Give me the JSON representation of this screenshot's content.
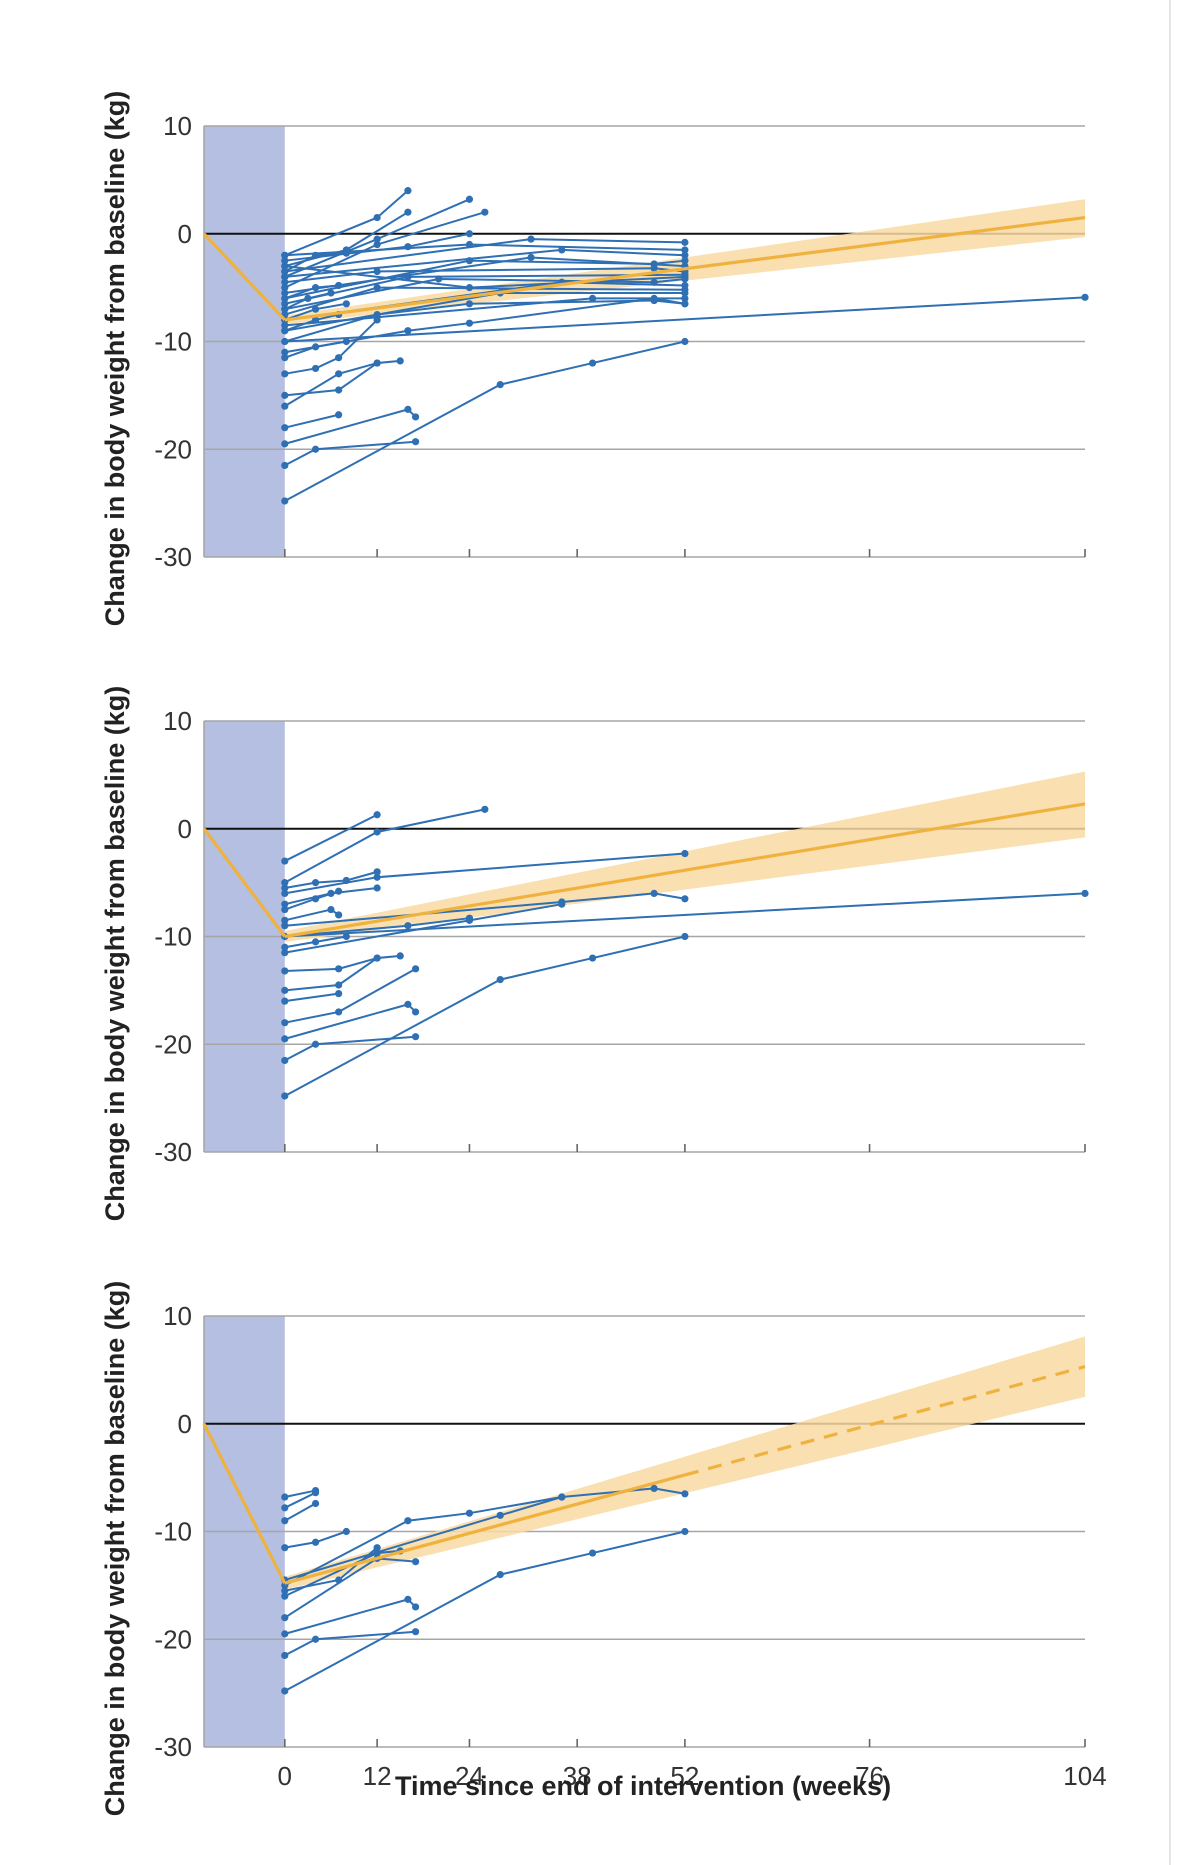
{
  "colors": {
    "shade": "#b4bfe1",
    "grid": "#a6a6a6",
    "zero_line": "#111111",
    "series": "#2f6fb3",
    "trend": "#f0b23e",
    "band": "#f9d9a3"
  },
  "chart_data": [
    {
      "type": "line",
      "title": "",
      "xlabel": "",
      "ylabel": "Change in body weight from baseline (kg)",
      "ylim": [
        -30,
        10
      ],
      "xlim": [
        -10.5,
        104
      ],
      "x_ticks": [
        0,
        12,
        24,
        38,
        52,
        76,
        104
      ],
      "show_x_tick_labels": false,
      "y_ticks": [
        10,
        0,
        -10,
        -20,
        -30
      ],
      "y_tick_labels": [
        "10",
        "0",
        "-10",
        "-20",
        "-30"
      ],
      "intervention_period": [
        -10.5,
        0
      ],
      "trend": {
        "x": [
          -10.5,
          0,
          104
        ],
        "y": [
          0,
          -8,
          1.5
        ],
        "style": "solid",
        "band_at_end": [
          -0.3,
          3.2
        ],
        "band_at_start": [
          -8.4,
          -7.6
        ]
      },
      "series": [
        {
          "x": [
            0,
            12,
            16
          ],
          "y": [
            -2,
            1.5,
            4
          ]
        },
        {
          "x": [
            0,
            8,
            16
          ],
          "y": [
            -3,
            -1.5,
            2
          ]
        },
        {
          "x": [
            0,
            12,
            24
          ],
          "y": [
            -4,
            -0.5,
            3.2
          ]
        },
        {
          "x": [
            0,
            12,
            26
          ],
          "y": [
            -5,
            -1,
            2
          ]
        },
        {
          "x": [
            0,
            16,
            24
          ],
          "y": [
            -2.5,
            -1.2,
            0
          ]
        },
        {
          "x": [
            0,
            32,
            52
          ],
          "y": [
            -3.5,
            -0.5,
            -0.8
          ]
        },
        {
          "x": [
            0,
            24,
            52
          ],
          "y": [
            -2,
            -1,
            -1.5
          ]
        },
        {
          "x": [
            0,
            36,
            52
          ],
          "y": [
            -4,
            -1.5,
            -2
          ]
        },
        {
          "x": [
            0,
            24,
            48,
            52
          ],
          "y": [
            -6,
            -2.5,
            -2.8,
            -2.5
          ]
        },
        {
          "x": [
            0,
            32,
            52
          ],
          "y": [
            -5.5,
            -2.2,
            -3
          ]
        },
        {
          "x": [
            0,
            12,
            48,
            52
          ],
          "y": [
            -4.5,
            -3.5,
            -3.2,
            -3.5
          ]
        },
        {
          "x": [
            0,
            16,
            52
          ],
          "y": [
            -6.5,
            -4,
            -3.8
          ]
        },
        {
          "x": [
            0,
            24,
            52
          ],
          "y": [
            -3,
            -5,
            -4
          ]
        },
        {
          "x": [
            0,
            20,
            48,
            52
          ],
          "y": [
            -7,
            -4.2,
            -4.5,
            -4.2
          ]
        },
        {
          "x": [
            0,
            36,
            52
          ],
          "y": [
            -8,
            -4.5,
            -4.8
          ]
        },
        {
          "x": [
            0,
            12,
            52
          ],
          "y": [
            -7.5,
            -5,
            -5.2
          ]
        },
        {
          "x": [
            0,
            28,
            52
          ],
          "y": [
            -9,
            -5.5,
            -5.5
          ]
        },
        {
          "x": [
            0,
            40,
            52
          ],
          "y": [
            -8.5,
            -6,
            -6
          ]
        },
        {
          "x": [
            0,
            12,
            24,
            48,
            52
          ],
          "y": [
            -10,
            -7.5,
            -6.5,
            -6.2,
            -6.5
          ]
        },
        {
          "x": [
            0,
            104
          ],
          "y": [
            -10,
            -5.9
          ]
        },
        {
          "x": [
            0,
            16,
            24,
            48,
            52
          ],
          "y": [
            -11,
            -9,
            -8.3,
            -6,
            -6.5
          ]
        },
        {
          "x": [
            0,
            4,
            8
          ],
          "y": [
            -3.5,
            -2,
            -1.8
          ]
        },
        {
          "x": [
            0,
            4,
            7
          ],
          "y": [
            -6,
            -5,
            -4.8
          ]
        },
        {
          "x": [
            0,
            3,
            6
          ],
          "y": [
            -7,
            -6,
            -5.5
          ]
        },
        {
          "x": [
            0,
            4,
            8
          ],
          "y": [
            -8,
            -7,
            -6.5
          ]
        },
        {
          "x": [
            0,
            4,
            7
          ],
          "y": [
            -9,
            -8,
            -7.5
          ]
        },
        {
          "x": [
            0,
            4,
            8
          ],
          "y": [
            -11.5,
            -10.5,
            -10
          ]
        },
        {
          "x": [
            0,
            4,
            7,
            12
          ],
          "y": [
            -13,
            -12.5,
            -11.5,
            -8
          ]
        },
        {
          "x": [
            0,
            7,
            12,
            15
          ],
          "y": [
            -15,
            -14.5,
            -12,
            -11.8
          ]
        },
        {
          "x": [
            0,
            7,
            12
          ],
          "y": [
            -16,
            -13,
            -12
          ]
        },
        {
          "x": [
            0,
            7
          ],
          "y": [
            -18,
            -16.8
          ]
        },
        {
          "x": [
            0,
            16,
            17
          ],
          "y": [
            -19.5,
            -16.3,
            -17
          ]
        },
        {
          "x": [
            0,
            4,
            17
          ],
          "y": [
            -21.5,
            -20,
            -19.3
          ]
        },
        {
          "x": [
            0,
            28,
            40,
            52
          ],
          "y": [
            -24.8,
            -14,
            -12,
            -10
          ]
        }
      ]
    },
    {
      "type": "line",
      "title": "",
      "xlabel": "",
      "ylabel": "Change in body weight from baseline (kg)",
      "ylim": [
        -30,
        10
      ],
      "xlim": [
        -10.5,
        104
      ],
      "x_ticks": [
        0,
        12,
        24,
        38,
        52,
        76,
        104
      ],
      "show_x_tick_labels": false,
      "y_ticks": [
        10,
        0,
        -10,
        -20,
        -30
      ],
      "y_tick_labels": [
        "10",
        "0",
        "-10",
        "-20",
        "-30"
      ],
      "intervention_period": [
        -10.5,
        0
      ],
      "trend": {
        "x": [
          -10.5,
          0,
          104
        ],
        "y": [
          0,
          -10,
          2.3
        ],
        "style": "solid",
        "band_at_end": [
          -0.8,
          5.3
        ],
        "band_at_start": [
          -10.5,
          -9.5
        ]
      },
      "series": [
        {
          "x": [
            0,
            12
          ],
          "y": [
            -3,
            1.3
          ]
        },
        {
          "x": [
            0,
            12,
            26
          ],
          "y": [
            -5,
            -0.3,
            1.8
          ]
        },
        {
          "x": [
            0,
            12,
            52
          ],
          "y": [
            -6,
            -4.5,
            -2.3
          ]
        },
        {
          "x": [
            0,
            4,
            8,
            12
          ],
          "y": [
            -5.5,
            -5,
            -4.8,
            -4
          ]
        },
        {
          "x": [
            0,
            6,
            12
          ],
          "y": [
            -7,
            -6,
            -5.5
          ]
        },
        {
          "x": [
            0,
            4,
            7
          ],
          "y": [
            -7.5,
            -6.5,
            -5.8
          ]
        },
        {
          "x": [
            0,
            6,
            7
          ],
          "y": [
            -8.5,
            -7.5,
            -8
          ]
        },
        {
          "x": [
            0,
            36,
            48,
            52
          ],
          "y": [
            -9,
            -6.8,
            -6,
            -6.5
          ]
        },
        {
          "x": [
            0,
            104
          ],
          "y": [
            -10,
            -6
          ]
        },
        {
          "x": [
            0,
            24,
            36
          ],
          "y": [
            -11.5,
            -8.5,
            -7
          ]
        },
        {
          "x": [
            0,
            4,
            8
          ],
          "y": [
            -11,
            -10.5,
            -10
          ]
        },
        {
          "x": [
            0,
            16,
            24
          ],
          "y": [
            -10,
            -9,
            -8.3
          ]
        },
        {
          "x": [
            0,
            7,
            12,
            15
          ],
          "y": [
            -13.2,
            -13,
            -12,
            -11.8
          ]
        },
        {
          "x": [
            0,
            7,
            12
          ],
          "y": [
            -15,
            -14.5,
            -12
          ]
        },
        {
          "x": [
            0,
            7
          ],
          "y": [
            -16,
            -15.3
          ]
        },
        {
          "x": [
            0,
            7,
            17
          ],
          "y": [
            -18,
            -17,
            -13
          ]
        },
        {
          "x": [
            0,
            16,
            17
          ],
          "y": [
            -19.5,
            -16.3,
            -17
          ]
        },
        {
          "x": [
            0,
            4,
            17
          ],
          "y": [
            -21.5,
            -20,
            -19.3
          ]
        },
        {
          "x": [
            0,
            28,
            40,
            52
          ],
          "y": [
            -24.8,
            -14,
            -12,
            -10
          ]
        }
      ]
    },
    {
      "type": "line",
      "title": "",
      "xlabel": "Time since end of intervention (weeks)",
      "ylabel": "Change in body weight from baseline (kg)",
      "ylim": [
        -30,
        10
      ],
      "xlim": [
        -10.5,
        104
      ],
      "x_ticks": [
        0,
        12,
        24,
        38,
        52,
        76,
        104
      ],
      "show_x_tick_labels": true,
      "x_tick_labels": [
        "0",
        "12",
        "24",
        "38",
        "52",
        "76",
        "104"
      ],
      "y_ticks": [
        10,
        0,
        -10,
        -20,
        -30
      ],
      "y_tick_labels": [
        "10",
        "0",
        "-10",
        "-20",
        "-30"
      ],
      "intervention_period": [
        -10.5,
        0
      ],
      "trend": {
        "x": [
          -10.5,
          0,
          104
        ],
        "y": [
          0,
          -14.8,
          5.3
        ],
        "style": "solid-then-dashed",
        "dash_from_x": 52,
        "band_at_end": [
          2.5,
          8.1
        ],
        "band_at_start": [
          -15.4,
          -14.2
        ]
      },
      "series": [
        {
          "x": [
            0,
            4
          ],
          "y": [
            -6.8,
            -6.2
          ]
        },
        {
          "x": [
            0,
            4
          ],
          "y": [
            -7.8,
            -6.4
          ]
        },
        {
          "x": [
            0,
            4
          ],
          "y": [
            -9,
            -7.4
          ]
        },
        {
          "x": [
            0,
            4,
            8
          ],
          "y": [
            -11.5,
            -11,
            -10
          ]
        },
        {
          "x": [
            0,
            16,
            24,
            36,
            48,
            52
          ],
          "y": [
            -15,
            -9,
            -8.3,
            -6.8,
            -6,
            -6.5
          ]
        },
        {
          "x": [
            0,
            12,
            15
          ],
          "y": [
            -16,
            -12,
            -11.8
          ]
        },
        {
          "x": [
            0,
            7,
            12
          ],
          "y": [
            -15.5,
            -14.5,
            -11.5
          ]
        },
        {
          "x": [
            0,
            12,
            17
          ],
          "y": [
            -18,
            -12.5,
            -12.8
          ]
        },
        {
          "x": [
            0,
            16,
            17
          ],
          "y": [
            -19.5,
            -16.3,
            -17
          ]
        },
        {
          "x": [
            0,
            4,
            17
          ],
          "y": [
            -21.5,
            -20,
            -19.3
          ]
        },
        {
          "x": [
            0,
            28,
            40,
            52
          ],
          "y": [
            -24.8,
            -14,
            -12,
            -10
          ]
        },
        {
          "x": [
            0,
            28,
            36
          ],
          "y": [
            -14.5,
            -8.5,
            -6.8
          ]
        }
      ]
    }
  ]
}
